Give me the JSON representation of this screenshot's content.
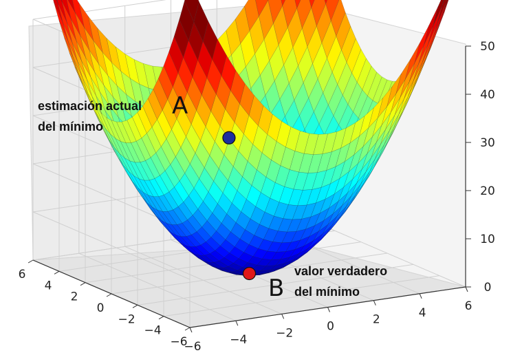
{
  "chart_data": {
    "type": "surface",
    "function": "z = x^2 + y^2",
    "x": [
      -6,
      -4,
      -2,
      0,
      2,
      4,
      6
    ],
    "y": [
      -6,
      -4,
      -2,
      0,
      2,
      4,
      6
    ],
    "xlim": [
      -6,
      6
    ],
    "ylim": [
      -6,
      6
    ],
    "zlim": [
      0,
      50
    ],
    "x_ticks": [
      "−6",
      "−4",
      "−2",
      "0",
      "2",
      "4",
      "6"
    ],
    "y_ticks": [
      "−6",
      "−4",
      "−2",
      "0",
      "2",
      "4",
      "6"
    ],
    "z_ticks": [
      "0",
      "10",
      "20",
      "30",
      "40",
      "50"
    ],
    "grid": true,
    "colormap": "jet",
    "points": [
      {
        "letter": "A",
        "x": -3.5,
        "y": -4.6,
        "z": 36,
        "color": "#1d2fa0",
        "label_line1": "estimación actual",
        "label_line2": "del mínimo"
      },
      {
        "letter": "B",
        "x": 0,
        "y": 0,
        "z": 0,
        "color": "#e01818",
        "label_line1": "valor verdadero",
        "label_line2": "del mínimo"
      }
    ]
  }
}
